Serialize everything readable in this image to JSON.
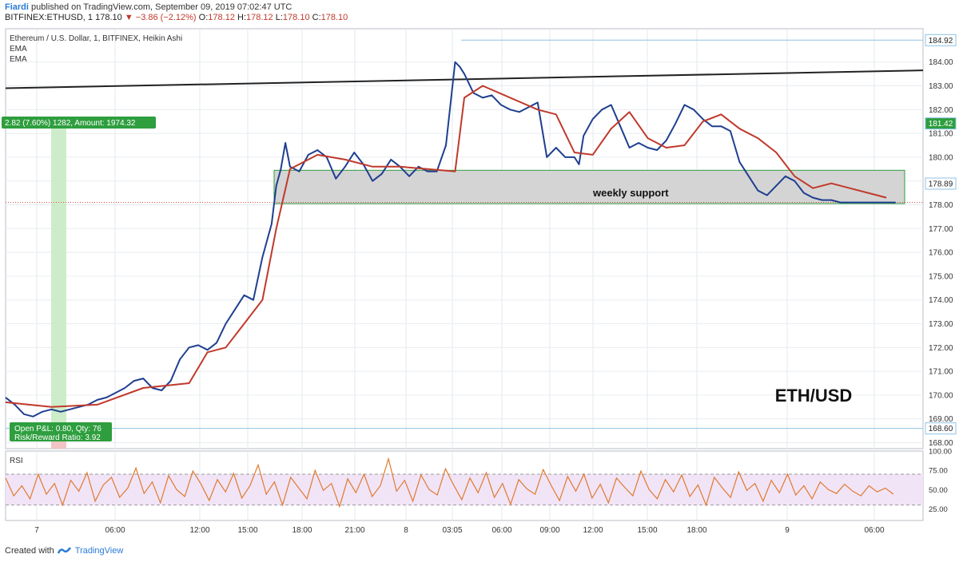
{
  "header": {
    "author": "Fiardi",
    "published": "published on TradingView.com, September 09, 2019 07:02:47 UTC",
    "symbol": "BITFINEX:ETHUSD, 1",
    "last": "178.10",
    "change_arrow": "▼",
    "change": "−3.86 (−2.12%)",
    "o_label": "O:",
    "o": "178.12",
    "h_label": "H:",
    "h": "178.12",
    "l_label": "L:",
    "l": "178.10",
    "c_label": "C:",
    "c": "178.10"
  },
  "footer": {
    "created_with": "Created with",
    "brand": "TradingView",
    "logo_icon": "tradingview-logo-icon"
  },
  "chart_data": {
    "type": "line",
    "title": "Ethereum / U.S. Dollar, 1, BITFINEX, Heikin Ashi",
    "indicators": [
      "EMA",
      "EMA"
    ],
    "x_ticks": [
      "7",
      "06:00",
      "12:00",
      "15:00",
      "18:00",
      "21:00",
      "8",
      "03:05",
      "06:00",
      "09:00",
      "12:00",
      "15:00",
      "18:00",
      "9",
      "06:00"
    ],
    "y_ticks": [
      "184.00",
      "183.00",
      "182.00",
      "181.00",
      "180.00",
      "179.00",
      "178.00",
      "177.00",
      "176.00",
      "175.00",
      "174.00",
      "173.00",
      "172.00",
      "171.00",
      "170.00",
      "169.00",
      "168.00"
    ],
    "ylim": [
      167.75,
      185.4
    ],
    "price_labels": [
      {
        "value": 184.92,
        "text": "184.92",
        "color": "#ffffff",
        "text_color": "#222222"
      },
      {
        "value": 181.42,
        "text": "181.42",
        "color": "#2e9e3e",
        "text_color": "#ffffff"
      },
      {
        "value": 178.89,
        "text": "178.89",
        "color": "#ffffff",
        "text_color": "#222222"
      },
      {
        "value": 168.6,
        "text": "168.60",
        "color": "#ffffff",
        "text_color": "#222222"
      }
    ],
    "current_price": 178.1,
    "series": [
      {
        "name": "Heikin Ashi",
        "color": "#1f3f8f",
        "x": [
          0,
          0.01,
          0.02,
          0.03,
          0.04,
          0.05,
          0.06,
          0.07,
          0.08,
          0.09,
          0.1,
          0.11,
          0.12,
          0.13,
          0.14,
          0.15,
          0.16,
          0.17,
          0.18,
          0.19,
          0.2,
          0.21,
          0.22,
          0.23,
          0.24,
          0.25,
          0.26,
          0.27,
          0.28,
          0.29,
          0.295,
          0.3,
          0.305,
          0.31,
          0.32,
          0.33,
          0.34,
          0.35,
          0.36,
          0.37,
          0.38,
          0.39,
          0.4,
          0.41,
          0.42,
          0.43,
          0.44,
          0.45,
          0.46,
          0.47,
          0.48,
          0.49,
          0.495,
          0.5,
          0.51,
          0.52,
          0.53,
          0.54,
          0.55,
          0.56,
          0.57,
          0.58,
          0.59,
          0.6,
          0.61,
          0.62,
          0.625,
          0.63,
          0.64,
          0.65,
          0.66,
          0.67,
          0.68,
          0.69,
          0.7,
          0.71,
          0.72,
          0.73,
          0.74,
          0.75,
          0.76,
          0.77,
          0.78,
          0.79,
          0.8,
          0.81,
          0.82,
          0.83,
          0.84,
          0.85,
          0.86,
          0.87,
          0.88,
          0.89,
          0.9,
          0.91,
          0.92,
          0.93,
          0.94,
          0.95,
          0.96,
          0.97
        ],
        "values": [
          169.9,
          169.6,
          169.2,
          169.1,
          169.3,
          169.4,
          169.3,
          169.4,
          169.5,
          169.6,
          169.8,
          169.9,
          170.1,
          170.3,
          170.6,
          170.7,
          170.3,
          170.2,
          170.6,
          171.5,
          172.0,
          172.1,
          171.9,
          172.2,
          173.0,
          173.6,
          174.2,
          174.0,
          175.8,
          177.2,
          178.8,
          179.5,
          180.6,
          179.6,
          179.4,
          180.1,
          180.3,
          180.0,
          179.1,
          179.6,
          180.2,
          179.7,
          179.0,
          179.3,
          179.9,
          179.6,
          179.2,
          179.6,
          179.4,
          179.4,
          180.5,
          184.0,
          183.8,
          183.5,
          182.7,
          182.5,
          182.6,
          182.2,
          182.0,
          181.9,
          182.1,
          182.3,
          180.0,
          180.4,
          180.0,
          180.0,
          179.7,
          180.9,
          181.6,
          182.0,
          182.2,
          181.3,
          180.4,
          180.6,
          180.4,
          180.3,
          180.7,
          181.4,
          182.2,
          182.0,
          181.6,
          181.3,
          181.3,
          181.1,
          179.8,
          179.2,
          178.6,
          178.4,
          178.8,
          179.2,
          179.0,
          178.5,
          178.3,
          178.2,
          178.2,
          178.1,
          178.1,
          178.1,
          178.1,
          178.1,
          178.1,
          178.1
        ]
      },
      {
        "name": "EMA",
        "color": "#c0392b",
        "x": [
          0,
          0.05,
          0.1,
          0.15,
          0.2,
          0.22,
          0.24,
          0.26,
          0.28,
          0.295,
          0.31,
          0.34,
          0.37,
          0.4,
          0.43,
          0.46,
          0.49,
          0.5,
          0.52,
          0.55,
          0.58,
          0.6,
          0.62,
          0.64,
          0.66,
          0.68,
          0.7,
          0.72,
          0.74,
          0.76,
          0.78,
          0.8,
          0.82,
          0.84,
          0.86,
          0.88,
          0.9,
          0.92,
          0.94,
          0.96
        ],
        "values": [
          169.7,
          169.5,
          169.6,
          170.3,
          170.5,
          171.8,
          172.0,
          173.0,
          174.0,
          177.0,
          179.5,
          180.1,
          179.9,
          179.6,
          179.6,
          179.5,
          179.4,
          182.5,
          183.0,
          182.5,
          182.0,
          181.8,
          180.2,
          180.1,
          181.2,
          181.9,
          180.8,
          180.4,
          180.5,
          181.5,
          181.8,
          181.2,
          180.8,
          180.2,
          179.2,
          178.7,
          178.9,
          178.7,
          178.5,
          178.3
        ]
      }
    ],
    "rsi": {
      "label": "RSI",
      "ylim": [
        10,
        100
      ],
      "y_ticks": [
        "100.00",
        "75.00",
        "50.00",
        "25.00"
      ],
      "band": [
        30,
        70
      ],
      "color": "#e07a2e",
      "values": [
        65,
        42,
        55,
        38,
        70,
        44,
        58,
        30,
        62,
        48,
        72,
        35,
        56,
        66,
        40,
        52,
        78,
        45,
        60,
        33,
        68,
        50,
        41,
        74,
        57,
        36,
        63,
        47,
        71,
        39,
        55,
        82,
        44,
        60,
        30,
        66,
        52,
        38,
        75,
        49,
        58,
        28,
        64,
        46,
        70,
        41,
        55,
        90,
        48,
        62,
        35,
        69,
        50,
        43,
        77,
        56,
        37,
        65,
        46,
        72,
        40,
        58,
        31,
        63,
        51,
        44,
        76,
        55,
        36,
        67,
        48,
        70,
        39,
        57,
        33,
        65,
        53,
        42,
        74,
        50,
        38,
        63,
        47,
        69,
        41,
        56,
        30,
        66,
        52,
        40,
        73,
        49,
        58,
        35,
        62,
        46,
        70,
        43,
        55,
        38,
        60,
        50,
        45,
        57,
        48,
        42,
        55,
        47,
        52,
        44
      ]
    },
    "annotations": [
      {
        "text": "weekly support"
      },
      {
        "text": "ETH/USD"
      },
      {
        "text": "2.82 (7.60%) 1282, Amount: 1974.32"
      },
      {
        "text": "Open P&L: 0.80, Qty: 76"
      },
      {
        "text": "Risk/Reward Ratio: 3.92"
      }
    ],
    "support_zone": [
      178.05,
      179.45
    ],
    "resistance_line": [
      182.9,
      183.65
    ],
    "target_level": 184.92,
    "stop_level": 168.6,
    "grid": true,
    "legend": "top-left"
  }
}
